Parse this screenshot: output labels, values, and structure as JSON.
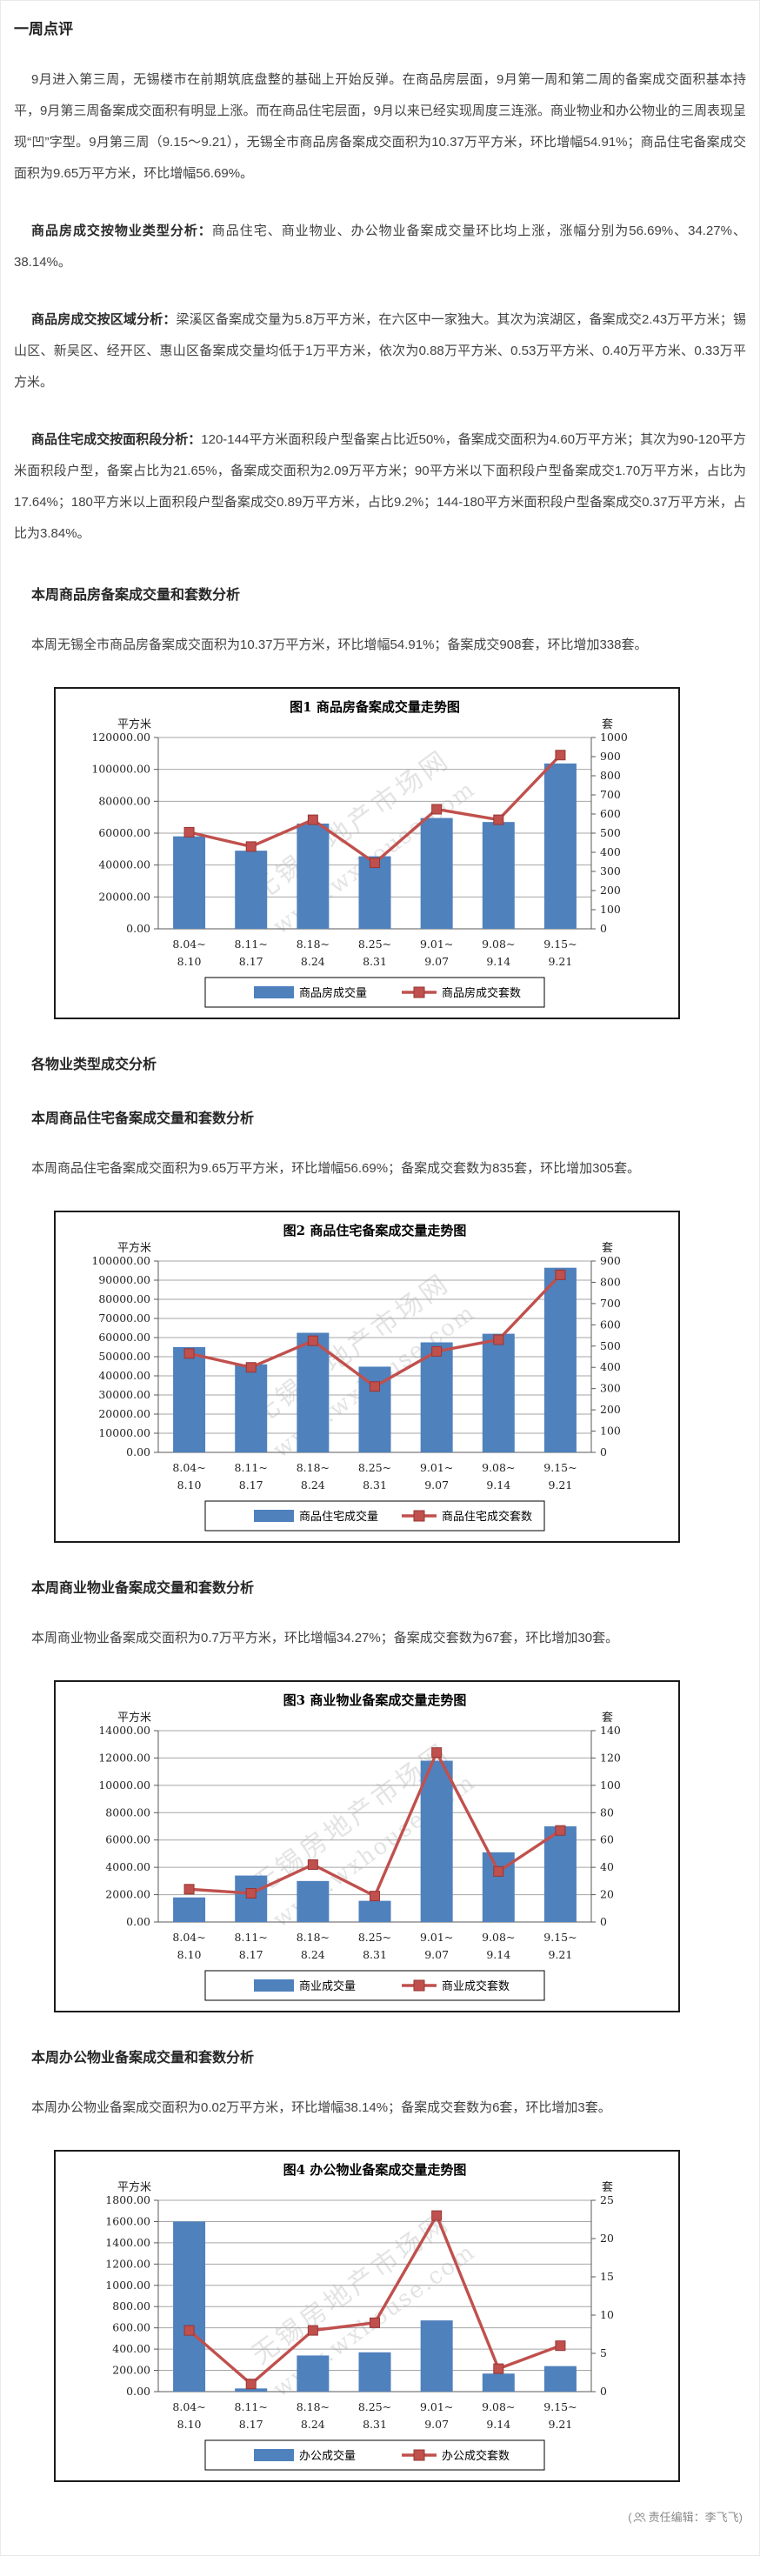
{
  "article": {
    "title": "一周点评",
    "p_intro": "9月进入第三周，无锡楼市在前期筑底盘整的基础上开始反弹。在商品房层面，9月第一周和第二周的备案成交面积基本持平，9月第三周备案成交面积有明显上涨。而在商品住宅层面，9月以来已经实现周度三连涨。商业物业和办公物业的三周表现呈现“凹”字型。9月第三周（9.15～9.21），无锡全市商品房备案成交面积为10.37万平方米，环比增幅54.91%；商品住宅备案成交面积为9.65万平方米，环比增幅56.69%。",
    "p_type": {
      "lead": "商品房成交按物业类型分析：",
      "text": "商品住宅、商业物业、办公物业备案成交量环比均上涨，涨幅分别为56.69%、34.27%、38.14%。"
    },
    "p_region": {
      "lead": "商品房成交按区域分析：",
      "text": "梁溪区备案成交量为5.8万平方米，在六区中一家独大。其次为滨湖区，备案成交2.43万平方米；锡山区、新吴区、经开区、惠山区备案成交量均低于1万平方米，依次为0.88万平方米、0.53万平方米、0.40万平方米、0.33万平方米。"
    },
    "p_area": {
      "lead": "商品住宅成交按面积段分析：",
      "text": "120-144平方米面积段户型备案占比近50%，备案成交面积为4.60万平方米；其次为90-120平方米面积段户型，备案占比为21.65%，备案成交面积为2.09万平方米；90平方米以下面积段户型备案成交1.70万平方米，占比为17.64%；180平方米以上面积段户型备案成交0.89万平方米，占比9.2%；144-180平方米面积段户型备案成交0.37万平方米，占比为3.84%。"
    },
    "h_house_week": "本周商品房备案成交量和套数分析",
    "p_house_week": "本周无锡全市商品房备案成交面积为10.37万平方米，环比增幅54.91%；备案成交908套，环比增加338套。",
    "h_property_types": "各物业类型成交分析",
    "h_residential_week": "本周商品住宅备案成交量和套数分析",
    "p_residential_week": "本周商品住宅备案成交面积为9.65万平方米，环比增幅56.69%；备案成交套数为835套，环比增加305套。",
    "h_commercial_week": "本周商业物业备案成交量和套数分析",
    "p_commercial_week": "本周商业物业备案成交面积为0.7万平方米，环比增幅34.27%；备案成交套数为67套，环比增加30套。",
    "h_office_week": "本周办公物业备案成交量和套数分析",
    "p_office_week": "本周办公物业备案成交面积为0.02万平方米，环比增幅38.14%；备案成交套数为6套，环比增加3套。",
    "footer": {
      "open": "(",
      "label": "责任编辑：李飞飞",
      "close": ")"
    }
  },
  "chart_style": {
    "bar": "#4f81bd",
    "line": "#c0504d",
    "line_dark": "#963634",
    "grid": "#a6a6a6",
    "axis": "#595959",
    "text": "#1f1f1f",
    "watermark": "#c3c3c3"
  },
  "chart_data": [
    {
      "type": "bar",
      "title": "图1  商品房备案成交量走势图",
      "left_axis": {
        "unit": "平方米",
        "max": 120000,
        "step": 20000,
        "decimals": 2
      },
      "right_axis": {
        "unit": "套",
        "max": 1000,
        "step": 100
      },
      "categories": [
        "8.04~8.10",
        "8.11~8.17",
        "8.18~8.24",
        "8.25~8.31",
        "9.01~9.07",
        "9.08~9.14",
        "9.15~9.21"
      ],
      "series": [
        {
          "name": "商品房成交量",
          "type": "bar",
          "axis": "left",
          "values": [
            58000,
            49000,
            66000,
            45500,
            69500,
            67000,
            103700
          ]
        },
        {
          "name": "商品房成交套数",
          "type": "line",
          "axis": "right",
          "values": [
            505,
            430,
            570,
            345,
            625,
            570,
            908
          ]
        }
      ],
      "grid": true,
      "legend_position": "bottom",
      "watermark": [
        "无锡房地产市场网",
        "www.wxhouse.com"
      ]
    },
    {
      "type": "bar",
      "title": "图2  商品住宅备案成交量走势图",
      "left_axis": {
        "unit": "平方米",
        "max": 100000,
        "step": 10000,
        "decimals": 2
      },
      "right_axis": {
        "unit": "套",
        "max": 900,
        "step": 100
      },
      "categories": [
        "8.04~8.10",
        "8.11~8.17",
        "8.18~8.24",
        "8.25~8.31",
        "9.01~9.07",
        "9.08~9.14",
        "9.15~9.21"
      ],
      "series": [
        {
          "name": "商品住宅成交量",
          "type": "bar",
          "axis": "left",
          "values": [
            55000,
            46000,
            62500,
            44800,
            57500,
            62000,
            96500
          ]
        },
        {
          "name": "商品住宅成交套数",
          "type": "line",
          "axis": "right",
          "values": [
            465,
            400,
            525,
            310,
            475,
            530,
            835
          ]
        }
      ],
      "grid": true,
      "legend_position": "bottom",
      "watermark": [
        "无锡房地产市场网",
        "www.wxhouse.com"
      ]
    },
    {
      "type": "bar",
      "title": "图3  商业物业备案成交量走势图",
      "left_axis": {
        "unit": "平方米",
        "max": 14000,
        "step": 2000,
        "decimals": 2
      },
      "right_axis": {
        "unit": "套",
        "max": 140,
        "step": 20
      },
      "categories": [
        "8.04~8.10",
        "8.11~8.17",
        "8.18~8.24",
        "8.25~8.31",
        "9.01~9.07",
        "9.08~9.14",
        "9.15~9.21"
      ],
      "series": [
        {
          "name": "商业成交量",
          "type": "bar",
          "axis": "left",
          "values": [
            1800,
            3400,
            3000,
            1550,
            11800,
            5100,
            7000
          ]
        },
        {
          "name": "商业成交套数",
          "type": "line",
          "axis": "right",
          "values": [
            24,
            21,
            42,
            19,
            124,
            37,
            67
          ]
        }
      ],
      "grid": true,
      "legend_position": "bottom",
      "watermark": [
        "无锡房地产市场网",
        "www.wxhouse.com"
      ]
    },
    {
      "type": "bar",
      "title": "图4  办公物业备案成交量走势图",
      "left_axis": {
        "unit": "平方米",
        "max": 1800,
        "step": 200,
        "decimals": 2
      },
      "right_axis": {
        "unit": "套",
        "max": 25,
        "step": 5
      },
      "categories": [
        "8.04~8.10",
        "8.11~8.17",
        "8.18~8.24",
        "8.25~8.31",
        "9.01~9.07",
        "9.08~9.14",
        "9.15~9.21"
      ],
      "series": [
        {
          "name": "办公成交量",
          "type": "bar",
          "axis": "left",
          "values": [
            1600,
            30,
            340,
            370,
            670,
            170,
            240
          ]
        },
        {
          "name": "办公成交套数",
          "type": "line",
          "axis": "right",
          "values": [
            8,
            1,
            8,
            9,
            23,
            3,
            6
          ]
        }
      ],
      "grid": true,
      "legend_position": "bottom",
      "watermark": [
        "无锡房地产市场网",
        "www.wxhouse.com"
      ]
    }
  ]
}
